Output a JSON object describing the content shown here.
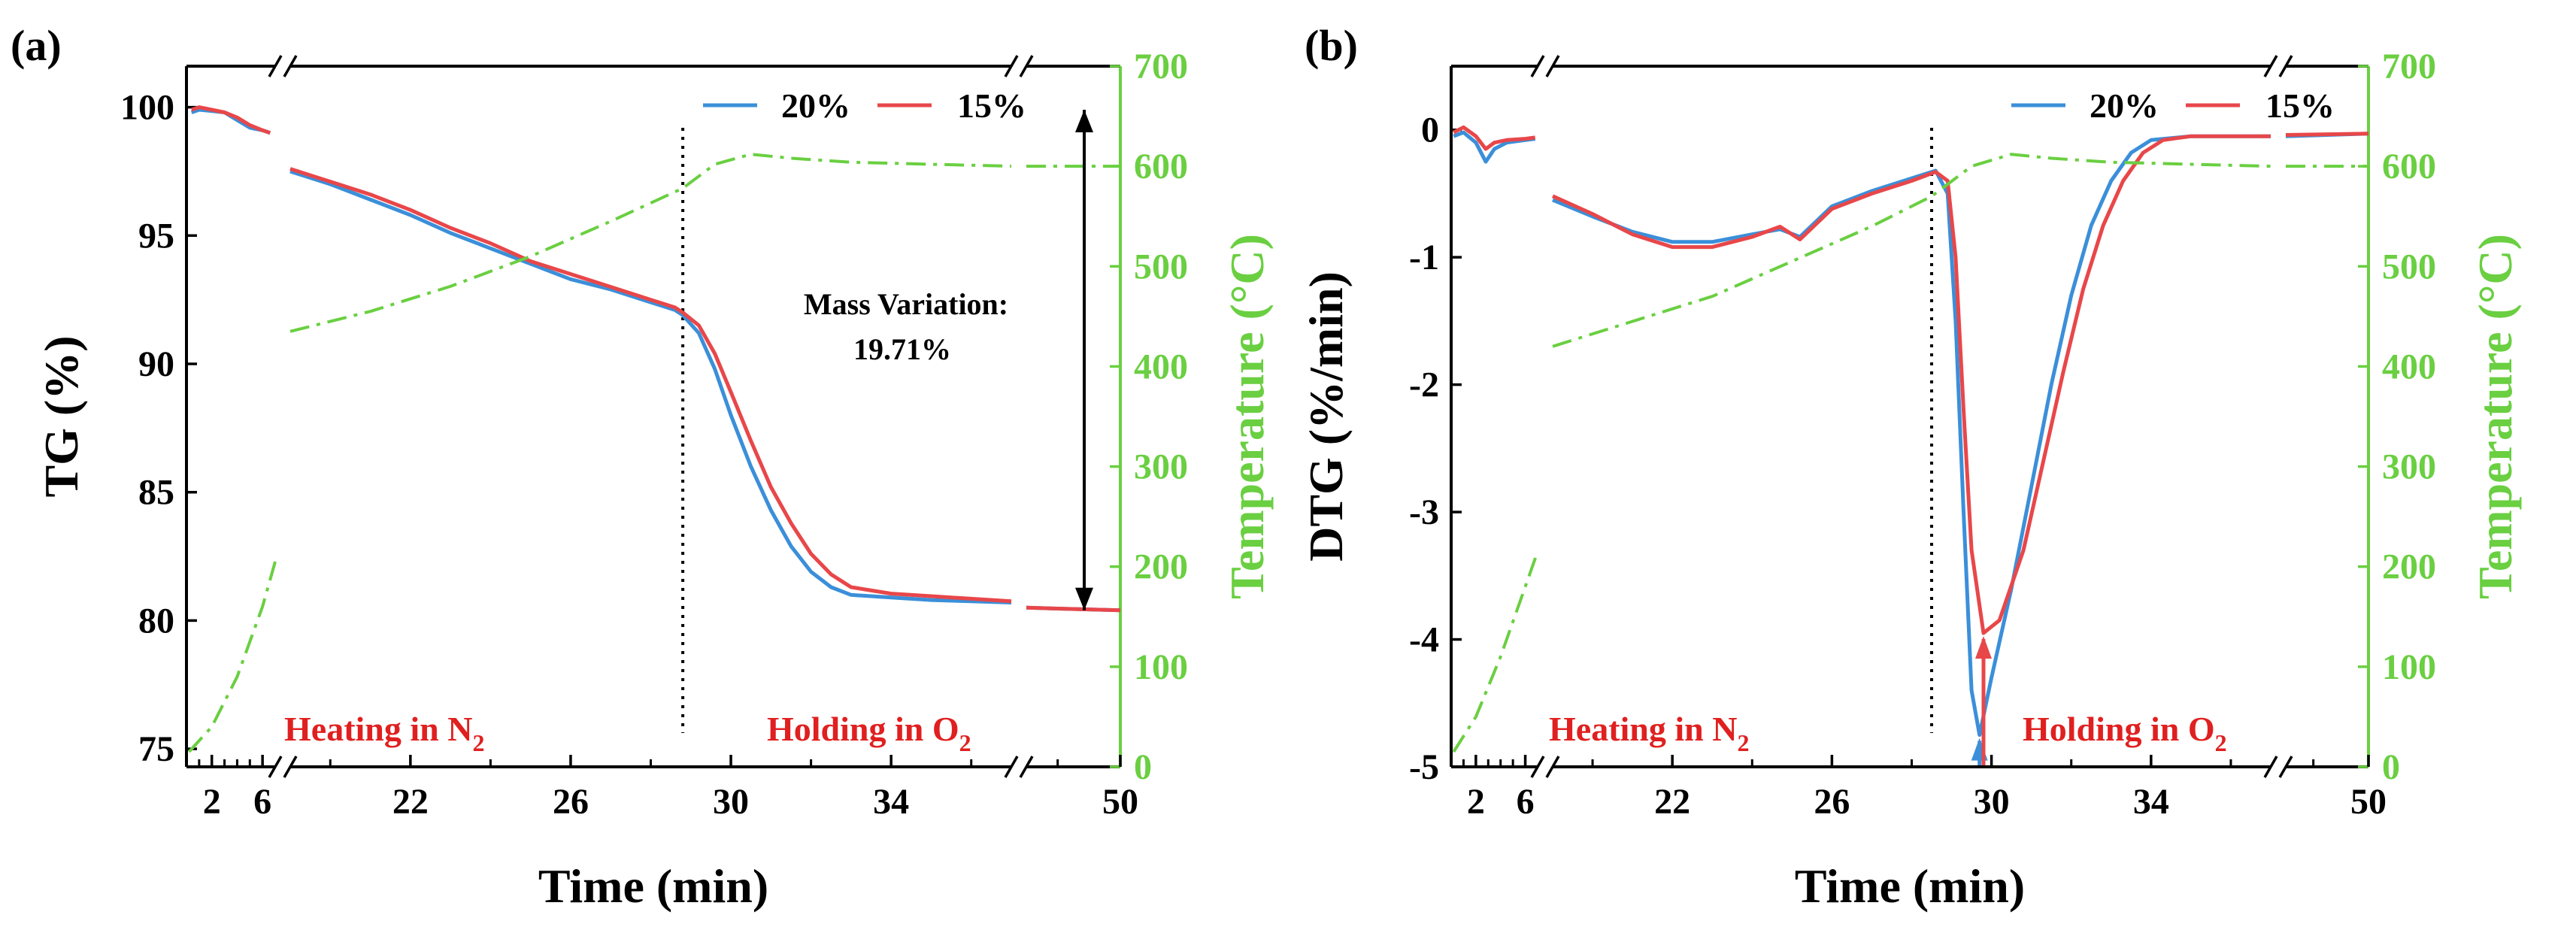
{
  "chart_data": [
    {
      "panel_label": "(a)",
      "type": "line",
      "xlabel": "Time (min)",
      "ylabel": "TG (%)",
      "y2label": "Temperature (°C)",
      "ylim": [
        74.3,
        101.6
      ],
      "y2lim": [
        0,
        700
      ],
      "y_ticks": [
        "100",
        "95",
        "90",
        "85",
        "80",
        "75"
      ],
      "y2_ticks": [
        "700",
        "600",
        "500",
        "400",
        "300",
        "200",
        "100",
        "0"
      ],
      "x_tick_labels": [
        "2",
        "6",
        "22",
        "26",
        "30",
        "34",
        "50"
      ],
      "x_segments": [
        {
          "range": [
            0,
            7
          ],
          "note": "initial heating segment"
        },
        {
          "range": [
            19,
            37
          ],
          "note": "main segment"
        },
        {
          "range": [
            47,
            50
          ],
          "note": "end segment"
        }
      ],
      "series": [
        {
          "name": "20%",
          "color": "#3b8fd9",
          "points": [
            [
              0.4,
              99.8
            ],
            [
              1,
              99.9
            ],
            [
              2,
              99.85
            ],
            [
              3,
              99.8
            ],
            [
              4,
              99.5
            ],
            [
              5,
              99.2
            ],
            [
              6,
              99.1
            ],
            [
              6.6,
              99.0
            ],
            [
              19,
              97.5
            ],
            [
              20,
              97.0
            ],
            [
              21,
              96.4
            ],
            [
              22,
              95.8
            ],
            [
              23,
              95.1
            ],
            [
              24,
              94.5
            ],
            [
              25,
              93.9
            ],
            [
              26,
              93.3
            ],
            [
              27,
              92.9
            ],
            [
              28,
              92.4
            ],
            [
              28.6,
              92.1
            ],
            [
              28.8,
              91.9
            ],
            [
              29.2,
              91.2
            ],
            [
              29.6,
              89.8
            ],
            [
              30,
              88.0
            ],
            [
              30.5,
              86.0
            ],
            [
              31,
              84.3
            ],
            [
              31.5,
              82.9
            ],
            [
              32,
              81.9
            ],
            [
              32.5,
              81.3
            ],
            [
              33,
              81.0
            ],
            [
              34,
              80.9
            ],
            [
              35,
              80.8
            ],
            [
              36,
              80.75
            ],
            [
              37,
              80.7
            ],
            [
              47,
              80.5
            ],
            [
              50,
              80.4
            ]
          ]
        },
        {
          "name": "15%",
          "color": "#e8474a",
          "points": [
            [
              0.4,
              99.9
            ],
            [
              1,
              100.0
            ],
            [
              2,
              99.9
            ],
            [
              3,
              99.8
            ],
            [
              4,
              99.6
            ],
            [
              5,
              99.3
            ],
            [
              6,
              99.1
            ],
            [
              6.6,
              99.0
            ],
            [
              19,
              97.6
            ],
            [
              20,
              97.1
            ],
            [
              21,
              96.6
            ],
            [
              22,
              96.0
            ],
            [
              23,
              95.3
            ],
            [
              24,
              94.7
            ],
            [
              25,
              94.0
            ],
            [
              26,
              93.5
            ],
            [
              27,
              93.0
            ],
            [
              28,
              92.5
            ],
            [
              28.6,
              92.2
            ],
            [
              28.8,
              92.0
            ],
            [
              29.2,
              91.5
            ],
            [
              29.6,
              90.4
            ],
            [
              30,
              88.9
            ],
            [
              30.5,
              87.0
            ],
            [
              31,
              85.2
            ],
            [
              31.5,
              83.8
            ],
            [
              32,
              82.6
            ],
            [
              32.5,
              81.8
            ],
            [
              33,
              81.3
            ],
            [
              34,
              81.05
            ],
            [
              35,
              80.95
            ],
            [
              36,
              80.85
            ],
            [
              37,
              80.75
            ],
            [
              47,
              80.5
            ],
            [
              50,
              80.4
            ]
          ]
        },
        {
          "name": "Temperature",
          "axis": "y2",
          "color": "#6acf41",
          "style": "dash-dot",
          "points": [
            [
              0.2,
              15
            ],
            [
              2,
              40
            ],
            [
              4,
              90
            ],
            [
              6,
              160
            ],
            [
              7,
              205
            ],
            [
              19,
              435
            ],
            [
              21,
              455
            ],
            [
              23,
              480
            ],
            [
              25,
              510
            ],
            [
              27,
              545
            ],
            [
              28.8,
              578
            ],
            [
              29.6,
              602
            ],
            [
              30.5,
              612
            ],
            [
              31.5,
              608
            ],
            [
              33,
              604
            ],
            [
              35,
              602
            ],
            [
              37,
              600
            ],
            [
              47,
              600
            ],
            [
              50,
              600
            ]
          ]
        }
      ],
      "legend": [
        "20%",
        "15%"
      ],
      "legend_position": "top-right",
      "annotations": {
        "mass_variation": "Mass Variation:",
        "mass_value": "19.71%",
        "heating_label": "Heating in N",
        "holding_label": "Holding in O",
        "n_subscript": "2",
        "o_subscript": "2"
      }
    },
    {
      "panel_label": "(b)",
      "type": "line",
      "xlabel": "Time (min)",
      "ylabel": "DTG (%/min)",
      "y2label": "Temperature (°C)",
      "ylim": [
        -5,
        0.5
      ],
      "y2lim": [
        0,
        700
      ],
      "y_ticks": [
        "0",
        "-1",
        "-2",
        "-3",
        "-4",
        "-5"
      ],
      "y2_ticks": [
        "700",
        "600",
        "500",
        "400",
        "300",
        "200",
        "100",
        "0"
      ],
      "x_tick_labels": [
        "2",
        "6",
        "22",
        "26",
        "30",
        "34",
        "50"
      ],
      "x_segments": [
        {
          "range": [
            0,
            7
          ],
          "note": "initial heating segment"
        },
        {
          "range": [
            19,
            37
          ],
          "note": "main segment"
        },
        {
          "range": [
            47,
            50
          ],
          "note": "end segment"
        }
      ],
      "series": [
        {
          "name": "20%",
          "color": "#3b8fd9",
          "points": [
            [
              0.2,
              -0.05
            ],
            [
              1,
              -0.02
            ],
            [
              2,
              -0.1
            ],
            [
              2.8,
              -0.25
            ],
            [
              3.5,
              -0.15
            ],
            [
              4.5,
              -0.1
            ],
            [
              6,
              -0.08
            ],
            [
              6.8,
              -0.07
            ],
            [
              19,
              -0.55
            ],
            [
              20,
              -0.68
            ],
            [
              21,
              -0.8
            ],
            [
              22,
              -0.88
            ],
            [
              23,
              -0.88
            ],
            [
              24,
              -0.82
            ],
            [
              24.7,
              -0.78
            ],
            [
              25.2,
              -0.84
            ],
            [
              26,
              -0.6
            ],
            [
              27,
              -0.48
            ],
            [
              28,
              -0.38
            ],
            [
              28.6,
              -0.32
            ],
            [
              28.9,
              -0.5
            ],
            [
              29.1,
              -1.5
            ],
            [
              29.3,
              -3.0
            ],
            [
              29.5,
              -4.4
            ],
            [
              29.7,
              -4.75
            ],
            [
              30,
              -4.3
            ],
            [
              30.5,
              -3.6
            ],
            [
              31,
              -2.8
            ],
            [
              31.5,
              -2.0
            ],
            [
              32,
              -1.3
            ],
            [
              32.5,
              -0.75
            ],
            [
              33,
              -0.4
            ],
            [
              33.5,
              -0.18
            ],
            [
              34,
              -0.08
            ],
            [
              35,
              -0.05
            ],
            [
              37,
              -0.05
            ],
            [
              47,
              -0.05
            ],
            [
              50,
              -0.03
            ]
          ]
        },
        {
          "name": "15%",
          "color": "#e8474a",
          "points": [
            [
              0.2,
              -0.02
            ],
            [
              1,
              0.02
            ],
            [
              2,
              -0.05
            ],
            [
              2.8,
              -0.15
            ],
            [
              3.5,
              -0.1
            ],
            [
              4.5,
              -0.08
            ],
            [
              6,
              -0.07
            ],
            [
              6.8,
              -0.06
            ],
            [
              19,
              -0.52
            ],
            [
              20,
              -0.66
            ],
            [
              21,
              -0.82
            ],
            [
              22,
              -0.92
            ],
            [
              23,
              -0.92
            ],
            [
              24,
              -0.84
            ],
            [
              24.7,
              -0.76
            ],
            [
              25.2,
              -0.86
            ],
            [
              26,
              -0.62
            ],
            [
              27,
              -0.5
            ],
            [
              28,
              -0.4
            ],
            [
              28.6,
              -0.33
            ],
            [
              28.9,
              -0.4
            ],
            [
              29.1,
              -1.0
            ],
            [
              29.3,
              -2.2
            ],
            [
              29.5,
              -3.3
            ],
            [
              29.8,
              -3.95
            ],
            [
              30.2,
              -3.85
            ],
            [
              30.8,
              -3.3
            ],
            [
              31.3,
              -2.6
            ],
            [
              31.8,
              -1.9
            ],
            [
              32.3,
              -1.25
            ],
            [
              32.8,
              -0.75
            ],
            [
              33.3,
              -0.4
            ],
            [
              33.8,
              -0.18
            ],
            [
              34.3,
              -0.08
            ],
            [
              35,
              -0.05
            ],
            [
              37,
              -0.05
            ],
            [
              47,
              -0.04
            ],
            [
              50,
              -0.03
            ]
          ]
        },
        {
          "name": "Temperature",
          "axis": "y2",
          "color": "#6acf41",
          "style": "dash-dot",
          "points": [
            [
              0.2,
              15
            ],
            [
              2,
              50
            ],
            [
              4,
              110
            ],
            [
              6,
              180
            ],
            [
              7,
              215
            ],
            [
              19,
              420
            ],
            [
              21,
              445
            ],
            [
              23,
              470
            ],
            [
              25,
              505
            ],
            [
              27,
              540
            ],
            [
              28.5,
              570
            ],
            [
              29.5,
              600
            ],
            [
              30.5,
              612
            ],
            [
              31.5,
              608
            ],
            [
              33,
              604
            ],
            [
              35,
              602
            ],
            [
              37,
              600
            ],
            [
              47,
              600
            ],
            [
              50,
              600
            ]
          ]
        }
      ],
      "markers": [
        {
          "series": "20%",
          "x": 29.7,
          "y": -4.75,
          "symbol": "up-arrow"
        },
        {
          "series": "15%",
          "x": 29.8,
          "y": -3.95,
          "symbol": "up-arrow"
        }
      ],
      "legend": [
        "20%",
        "15%"
      ],
      "legend_position": "top-right",
      "annotations": {
        "heating_label": "Heating in N",
        "holding_label": "Holding in O",
        "n_subscript": "2",
        "o_subscript": "2"
      }
    }
  ]
}
